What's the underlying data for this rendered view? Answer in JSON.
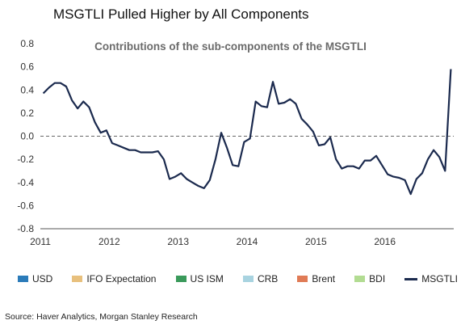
{
  "chart_data": {
    "type": "bar",
    "title": "MSGTLI Pulled Higher by All Components",
    "subtitle": "Contributions of the sub-components of the MSGTLI",
    "x_tick_labels": [
      "2011",
      "2012",
      "2013",
      "2014",
      "2015",
      "2016"
    ],
    "x_range": [
      "2011-01",
      "2016-12"
    ],
    "ylim": [
      -0.8,
      0.8
    ],
    "y_ticks": [
      0.8,
      0.6,
      0.4,
      0.2,
      0.0,
      -0.2,
      -0.4,
      -0.6,
      -0.8
    ],
    "grid": false,
    "legend_position": "bottom",
    "colors": {
      "USD": "#2b7bb9",
      "IFO Expectation": "#e8c07d",
      "US ISM": "#3a9a5b",
      "CRB": "#a8d3e0",
      "Brent": "#e07b56",
      "BDI": "#b2dc92",
      "MSGTLI": "#1b2a4e"
    },
    "series": [
      {
        "name": "USD",
        "values": [
          0,
          0,
          0,
          0,
          0,
          0,
          0,
          0,
          0,
          0,
          0,
          0,
          0,
          0,
          0,
          0,
          0,
          0,
          0,
          0,
          0,
          0,
          0,
          0,
          0,
          0,
          0,
          0,
          0,
          0,
          0,
          0,
          0,
          0,
          0,
          0,
          0,
          0,
          0,
          0,
          0,
          0,
          0,
          0,
          0,
          0,
          0,
          0,
          0,
          0,
          0,
          0,
          0,
          0,
          0,
          0,
          0,
          0,
          0,
          0,
          0,
          0,
          0,
          0,
          0,
          0,
          0,
          0,
          0,
          0,
          0,
          0
        ]
      },
      {
        "name": "IFO Expectation",
        "values": [
          0,
          0,
          0,
          0,
          0,
          0,
          0,
          0,
          0,
          0,
          0,
          0,
          0,
          0,
          0,
          0,
          0,
          0,
          0,
          0,
          0,
          0,
          0,
          0,
          0,
          0,
          0,
          0,
          0,
          0,
          0,
          0,
          0,
          0,
          0,
          0,
          0,
          0,
          0,
          0,
          0,
          0,
          0,
          0,
          0,
          0,
          0,
          0,
          0,
          0,
          0,
          0,
          0,
          0,
          0,
          0,
          0,
          0,
          0,
          0,
          0,
          0,
          0,
          0,
          0,
          0,
          0,
          0,
          0,
          0,
          0,
          0
        ]
      },
      {
        "name": "US ISM",
        "values": [
          0,
          0,
          0,
          0,
          0,
          0,
          0,
          0,
          0,
          0,
          0,
          0,
          0,
          0,
          0,
          0,
          0,
          0,
          0,
          0,
          0,
          0,
          0,
          0,
          0,
          0,
          0,
          0,
          0,
          0,
          0,
          0,
          0,
          0,
          0,
          0,
          0,
          0,
          0,
          0,
          0,
          0,
          0,
          0,
          0,
          0,
          0,
          0,
          0,
          0,
          0,
          0,
          0,
          0,
          0,
          0,
          0,
          0,
          0,
          0,
          0,
          0,
          0,
          0,
          0,
          0,
          0,
          0,
          0,
          0,
          0,
          0
        ]
      },
      {
        "name": "CRB",
        "values": [
          0,
          0,
          0,
          0,
          0,
          0,
          0,
          0,
          0,
          0,
          0,
          0,
          0,
          0,
          0,
          0,
          0,
          0,
          0,
          0,
          0,
          0,
          0,
          0,
          0,
          0,
          0,
          0,
          0,
          0,
          0,
          0,
          0,
          0,
          0,
          0,
          0,
          0,
          0,
          0,
          0,
          0,
          0,
          0,
          0,
          0,
          0,
          0,
          0,
          0,
          0,
          0,
          0,
          0,
          0,
          0,
          0,
          0,
          0,
          0,
          0,
          0,
          0,
          0,
          0,
          0,
          0,
          0,
          0,
          0,
          0,
          0
        ]
      },
      {
        "name": "Brent",
        "values": [
          0,
          0,
          0,
          0,
          0,
          0,
          0,
          0,
          0,
          0,
          0,
          0,
          0,
          0,
          0,
          0,
          0,
          0,
          0,
          0,
          0,
          0,
          0,
          0,
          0,
          0,
          0,
          0,
          0,
          0,
          0,
          0,
          0,
          0,
          0,
          0,
          0,
          0,
          0,
          0,
          0,
          0,
          0,
          0,
          0,
          0,
          0,
          0,
          0,
          0,
          0,
          0,
          0,
          0,
          0,
          0,
          0,
          0,
          0,
          0,
          0,
          0,
          0,
          0,
          0,
          0,
          0,
          0,
          0,
          0,
          0,
          0
        ]
      },
      {
        "name": "BDI",
        "values": [
          0,
          0,
          0,
          0,
          0,
          0,
          0,
          0,
          0,
          0,
          0,
          0,
          0,
          0,
          0,
          0,
          0,
          0,
          0,
          0,
          0,
          0,
          0,
          0,
          0,
          0,
          0,
          0,
          0,
          0,
          0,
          0,
          0,
          0,
          0,
          0,
          0,
          0,
          0,
          0,
          0,
          0,
          0,
          0,
          0,
          0,
          0,
          0,
          0,
          0,
          0,
          0,
          0,
          0,
          0,
          0,
          0,
          0,
          0,
          0,
          0,
          0,
          0,
          0,
          0,
          0,
          0,
          0,
          0,
          0,
          0,
          0
        ]
      },
      {
        "name": "MSGTLI",
        "type": "line",
        "values": [
          0.37,
          0.42,
          0.46,
          0.46,
          0.43,
          0.31,
          0.24,
          0.3,
          0.25,
          0.12,
          0.03,
          0.05,
          -0.06,
          -0.08,
          -0.1,
          -0.12,
          -0.12,
          -0.14,
          -0.14,
          -0.14,
          -0.13,
          -0.2,
          -0.37,
          -0.35,
          -0.32,
          -0.37,
          -0.4,
          -0.43,
          -0.45,
          -0.38,
          -0.2,
          0.03,
          -0.1,
          -0.25,
          -0.26,
          -0.05,
          -0.02,
          0.3,
          0.26,
          0.25,
          0.47,
          0.28,
          0.29,
          0.32,
          0.28,
          0.15,
          0.1,
          0.04,
          -0.08,
          -0.07,
          -0.01,
          -0.2,
          -0.28,
          -0.26,
          -0.26,
          -0.28,
          -0.21,
          -0.21,
          -0.17,
          -0.25,
          -0.33,
          -0.35,
          -0.36,
          -0.38,
          -0.5,
          -0.37,
          -0.32,
          -0.2,
          -0.12,
          -0.18,
          -0.3,
          0.58
        ]
      }
    ]
  }
}
